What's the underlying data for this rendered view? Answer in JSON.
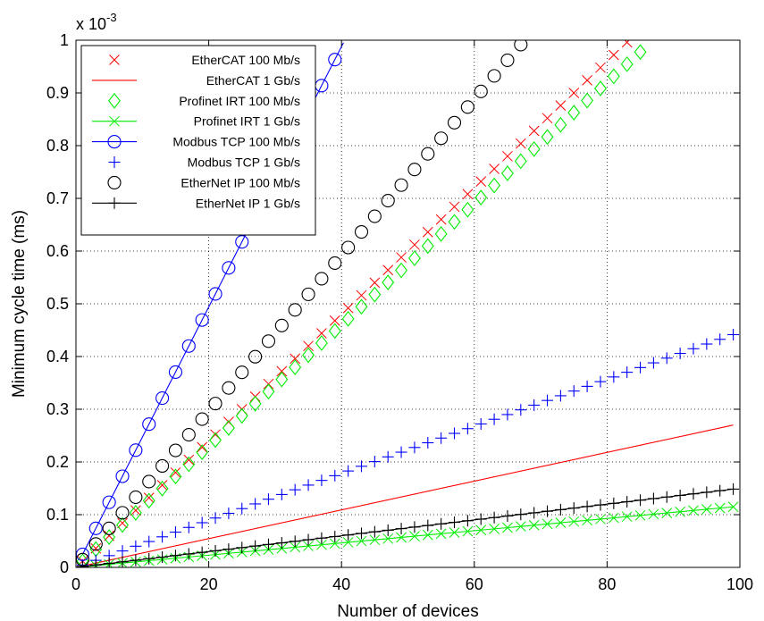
{
  "chart_data": {
    "type": "line",
    "title": "",
    "xlabel": "Number of devices",
    "ylabel": "Minimum cycle time (ms)",
    "y_multiplier_label": {
      "base": "x 10",
      "exponent": "-3"
    },
    "xlim": [
      0,
      100
    ],
    "ylim": [
      0,
      1
    ],
    "xticks": [
      "0",
      "20",
      "40",
      "60",
      "80",
      "100"
    ],
    "yticks": [
      "0",
      "0.1",
      "0.2",
      "0.3",
      "0.4",
      "0.5",
      "0.6",
      "0.7",
      "0.8",
      "0.9",
      "1"
    ],
    "grid": true,
    "legend_position": "top-left",
    "series": [
      {
        "name": "EtherCAT 100 Mb/s",
        "color": "#ff0000",
        "marker": "x",
        "line": false,
        "x": [
          1,
          3,
          5,
          7,
          9,
          11,
          13,
          15,
          17,
          19,
          21,
          23,
          25,
          27,
          29,
          31,
          33,
          35,
          37,
          39,
          41,
          43,
          45,
          47,
          49,
          51,
          53,
          55,
          57,
          59,
          61,
          63,
          65,
          67,
          69,
          71,
          73,
          75,
          77,
          79,
          81,
          83
        ],
        "y": [
          0.012,
          0.036,
          0.06,
          0.084,
          0.108,
          0.132,
          0.156,
          0.18,
          0.204,
          0.228,
          0.252,
          0.276,
          0.3,
          0.324,
          0.348,
          0.372,
          0.396,
          0.42,
          0.444,
          0.468,
          0.492,
          0.516,
          0.54,
          0.564,
          0.588,
          0.612,
          0.636,
          0.66,
          0.684,
          0.708,
          0.732,
          0.756,
          0.78,
          0.804,
          0.828,
          0.852,
          0.876,
          0.9,
          0.924,
          0.948,
          0.972,
          0.996
        ]
      },
      {
        "name": "EtherCAT 1 Gb/s",
        "color": "#ff0000",
        "marker": "none",
        "line": true,
        "x": [
          0,
          99
        ],
        "y": [
          0,
          0.27
        ]
      },
      {
        "name": "Profinet IRT 100 Mb/s",
        "color": "#00ee00",
        "marker": "diamond",
        "line": false,
        "x": [
          1,
          3,
          5,
          7,
          9,
          11,
          13,
          15,
          17,
          19,
          21,
          23,
          25,
          27,
          29,
          31,
          33,
          35,
          37,
          39,
          41,
          43,
          45,
          47,
          49,
          51,
          53,
          55,
          57,
          59,
          61,
          63,
          65,
          67,
          69,
          71,
          73,
          75,
          77,
          79,
          81,
          83,
          85
        ],
        "y": [
          0.0115,
          0.0345,
          0.0575,
          0.0805,
          0.1035,
          0.1265,
          0.1495,
          0.1725,
          0.1955,
          0.2185,
          0.2415,
          0.2645,
          0.2875,
          0.3105,
          0.3335,
          0.3565,
          0.3795,
          0.4025,
          0.4255,
          0.4485,
          0.4715,
          0.4945,
          0.5175,
          0.5405,
          0.5635,
          0.5865,
          0.6095,
          0.6325,
          0.6555,
          0.6785,
          0.7015,
          0.7245,
          0.7475,
          0.7705,
          0.7935,
          0.8165,
          0.8395,
          0.8625,
          0.8855,
          0.9085,
          0.9315,
          0.9545,
          0.9775
        ]
      },
      {
        "name": "Profinet IRT 1 Gb/s",
        "color": "#00ee00",
        "marker": "x",
        "line": true,
        "x": [
          1,
          3,
          5,
          7,
          9,
          11,
          13,
          15,
          17,
          19,
          21,
          23,
          25,
          27,
          29,
          31,
          33,
          35,
          37,
          39,
          41,
          43,
          45,
          47,
          49,
          51,
          53,
          55,
          57,
          59,
          61,
          63,
          65,
          67,
          69,
          71,
          73,
          75,
          77,
          79,
          81,
          83,
          85,
          87,
          89,
          91,
          93,
          95,
          97,
          99
        ],
        "y": [
          0.00116,
          0.00348,
          0.0058,
          0.00812,
          0.01044,
          0.01276,
          0.01508,
          0.0174,
          0.01972,
          0.02204,
          0.02436,
          0.02668,
          0.029,
          0.03132,
          0.03364,
          0.03596,
          0.03828,
          0.0406,
          0.04292,
          0.04524,
          0.04756,
          0.04988,
          0.0522,
          0.05452,
          0.05684,
          0.05916,
          0.06148,
          0.0638,
          0.06612,
          0.06844,
          0.07076,
          0.07308,
          0.0754,
          0.07772,
          0.08004,
          0.08236,
          0.08468,
          0.087,
          0.08932,
          0.09164,
          0.09396,
          0.09628,
          0.0986,
          0.10092,
          0.10324,
          0.10556,
          0.10788,
          0.1102,
          0.11252,
          0.11484
        ]
      },
      {
        "name": "Modbus TCP 100 Mb/s",
        "color": "#0000ff",
        "marker": "circle",
        "line": true,
        "x": [
          1,
          3,
          5,
          7,
          9,
          11,
          13,
          15,
          17,
          19,
          21,
          23,
          25,
          27,
          29,
          31,
          33,
          35,
          37,
          39,
          40.3
        ],
        "y": [
          0.0247,
          0.0741,
          0.1235,
          0.1729,
          0.2223,
          0.2717,
          0.3211,
          0.3705,
          0.4199,
          0.4693,
          0.5187,
          0.5681,
          0.6175,
          0.6669,
          0.7163,
          0.7657,
          0.8151,
          0.8645,
          0.9139,
          0.9633,
          0.9954
        ],
        "marker_count": 20
      },
      {
        "name": "Modbus TCP 1 Gb/s",
        "color": "#0000ff",
        "marker": "plus",
        "line": false,
        "x": [
          1,
          3,
          5,
          7,
          9,
          11,
          13,
          15,
          17,
          19,
          21,
          23,
          25,
          27,
          29,
          31,
          33,
          35,
          37,
          39,
          41,
          43,
          45,
          47,
          49,
          51,
          53,
          55,
          57,
          59,
          61,
          63,
          65,
          67,
          69,
          71,
          73,
          75,
          77,
          79,
          81,
          83,
          85,
          87,
          89,
          91,
          93,
          95,
          97,
          99
        ],
        "y": [
          0.00446,
          0.01338,
          0.0223,
          0.03122,
          0.04014,
          0.04906,
          0.05798,
          0.0669,
          0.07582,
          0.08474,
          0.09366,
          0.10258,
          0.1115,
          0.12042,
          0.12934,
          0.13826,
          0.14718,
          0.1561,
          0.16502,
          0.17394,
          0.18286,
          0.19178,
          0.2007,
          0.20962,
          0.21854,
          0.22746,
          0.23638,
          0.2453,
          0.25422,
          0.26314,
          0.27206,
          0.28098,
          0.2899,
          0.29882,
          0.30774,
          0.31666,
          0.32558,
          0.3345,
          0.34342,
          0.35234,
          0.36126,
          0.37018,
          0.3791,
          0.38802,
          0.39694,
          0.40586,
          0.41478,
          0.4237,
          0.43262,
          0.44154
        ]
      },
      {
        "name": "EtherNet IP 100 Mb/s",
        "color": "#000000",
        "marker": "circle",
        "line": false,
        "x": [
          1,
          3,
          5,
          7,
          9,
          11,
          13,
          15,
          17,
          19,
          21,
          23,
          25,
          27,
          29,
          31,
          33,
          35,
          37,
          39,
          41,
          43,
          45,
          47,
          49,
          51,
          53,
          55,
          57,
          59,
          61,
          63,
          65,
          67
        ],
        "y": [
          0.0148,
          0.0444,
          0.074,
          0.1036,
          0.1332,
          0.1628,
          0.1924,
          0.222,
          0.2516,
          0.2812,
          0.3108,
          0.3404,
          0.37,
          0.3996,
          0.4292,
          0.4588,
          0.4884,
          0.518,
          0.5476,
          0.5772,
          0.6068,
          0.6364,
          0.666,
          0.6956,
          0.7252,
          0.7548,
          0.7844,
          0.814,
          0.8436,
          0.8732,
          0.9028,
          0.9324,
          0.962,
          0.9916
        ]
      },
      {
        "name": "EtherNet IP 1 Gb/s",
        "color": "#000000",
        "marker": "plus",
        "line": true,
        "x": [
          1,
          3,
          5,
          7,
          9,
          11,
          13,
          15,
          17,
          19,
          21,
          23,
          25,
          27,
          29,
          31,
          33,
          35,
          37,
          39,
          41,
          43,
          45,
          47,
          49,
          51,
          53,
          55,
          57,
          59,
          61,
          63,
          65,
          67,
          69,
          71,
          73,
          75,
          77,
          79,
          81,
          83,
          85,
          87,
          89,
          91,
          93,
          95,
          97,
          99
        ],
        "y": [
          0.0015,
          0.0045,
          0.0075,
          0.0105,
          0.0135,
          0.0165,
          0.0195,
          0.0225,
          0.0255,
          0.0285,
          0.0315,
          0.0345,
          0.0375,
          0.0405,
          0.0435,
          0.0465,
          0.0495,
          0.0525,
          0.0555,
          0.0585,
          0.0615,
          0.0645,
          0.0675,
          0.0705,
          0.0735,
          0.0765,
          0.0795,
          0.0825,
          0.0855,
          0.0885,
          0.0915,
          0.0945,
          0.0975,
          0.1005,
          0.1035,
          0.1065,
          0.1095,
          0.1125,
          0.1155,
          0.1185,
          0.1215,
          0.1245,
          0.1275,
          0.1305,
          0.1335,
          0.1365,
          0.1395,
          0.1425,
          0.1455,
          0.1485
        ]
      }
    ]
  }
}
